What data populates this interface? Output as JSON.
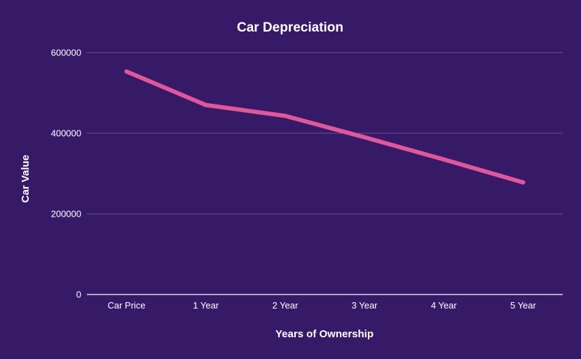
{
  "chart_data": {
    "type": "line",
    "title": "Car Depreciation",
    "xlabel": "Years of Ownership",
    "ylabel": "Car Value",
    "categories": [
      "Car Price",
      "1 Year",
      "2 Year",
      "3 Year",
      "4 Year",
      "5 Year"
    ],
    "series": [
      {
        "values": [
          553000,
          470000,
          443000,
          390000,
          335000,
          278000
        ]
      }
    ],
    "ylim": [
      0,
      600000
    ],
    "yticks": [
      0,
      200000,
      400000,
      600000
    ],
    "grid": true,
    "legend": "none"
  },
  "colors": {
    "background": "#361a67",
    "line": "#e0579a",
    "text": "#ffffff",
    "gridline": "#7a63a6",
    "baseline": "#ffffff"
  }
}
